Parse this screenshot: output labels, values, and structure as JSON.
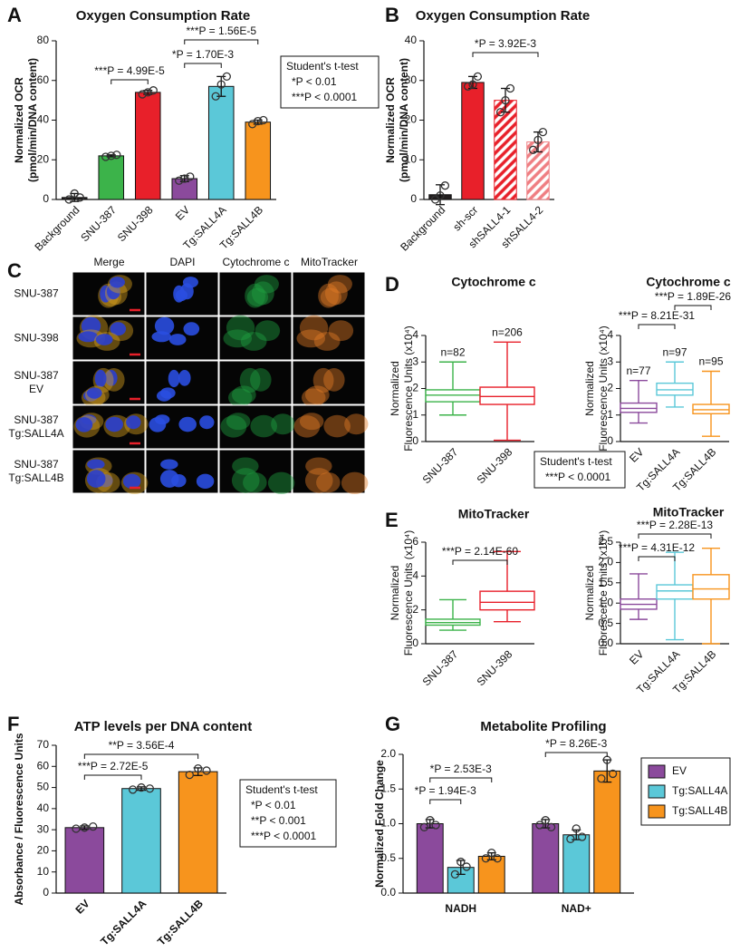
{
  "panel_labels": [
    "A",
    "B",
    "C",
    "D",
    "E",
    "F",
    "G"
  ],
  "image_panel": {
    "columns": [
      "Merge",
      "DAPI",
      "Cytochrome c",
      "MitoTracker"
    ],
    "column_colors": [
      "#222222",
      "#1f6fd1",
      "#22a04a",
      "#e0322a"
    ],
    "rows": [
      [
        "SNU-387"
      ],
      [
        "SNU-398"
      ],
      [
        "SNU-387",
        "EV"
      ],
      [
        "SNU-387",
        "Tg:SALL4A"
      ],
      [
        "SNU-387",
        "Tg:SALL4B"
      ]
    ]
  },
  "chart_data": [
    {
      "type": "bar",
      "title": "Oxygen Consumption Rate",
      "y_label": [
        "Normalized OCR",
        "(pmol/min/DNA content)"
      ],
      "categories": [
        "Background",
        "SNU-387",
        "SNU-398",
        "EV",
        "Tg:SALL4A",
        "Tg:SALL4B"
      ],
      "values": [
        1,
        22,
        54,
        10.5,
        57,
        39
      ],
      "errors": [
        2,
        0.5,
        1,
        1.5,
        5,
        1
      ],
      "points": [
        [
          0,
          3,
          1
        ],
        [
          21.5,
          22,
          22.5
        ],
        [
          53,
          54,
          55
        ],
        [
          9.5,
          10.5,
          11.5
        ],
        [
          52,
          58,
          62
        ],
        [
          38,
          39.5,
          40
        ]
      ],
      "colors": [
        "#231f20",
        "#3cb34a",
        "#e8202a",
        "#8b4a9c",
        "#5bc8d8",
        "#f7941d"
      ],
      "ylim": [
        0,
        80
      ],
      "yticks": [
        0,
        20,
        40,
        60,
        80
      ],
      "annotations": [
        "***P = 4.99E-5",
        "*P = 1.70E-3",
        "***P = 1.56E-5"
      ],
      "stats_box": [
        "Student's t-test",
        "*P < 0.01",
        "***P < 0.0001"
      ]
    },
    {
      "type": "bar",
      "title": "Oxygen Consumption Rate",
      "y_label": [
        "Normalized OCR",
        "(pmol/min/DNA content)"
      ],
      "categories": [
        "Background",
        "sh-scr",
        "shSALL4-1",
        "shSALL4-2"
      ],
      "values": [
        1.2,
        29.5,
        25,
        14.5
      ],
      "errors": [
        2.5,
        1.5,
        3,
        2.5
      ],
      "points": [
        [
          0,
          1,
          3.5
        ],
        [
          28.5,
          29,
          31
        ],
        [
          22,
          25,
          28
        ],
        [
          12.5,
          15,
          17
        ]
      ],
      "colors": [
        "#231f20",
        "#e8202a",
        "#e8202a",
        "#ef7e82"
      ],
      "hatch": [
        false,
        false,
        true,
        true
      ],
      "ylim": [
        0,
        40
      ],
      "yticks": [
        0,
        10,
        20,
        30,
        40
      ],
      "annotations": [
        "*P = 3.92E-3"
      ]
    },
    {
      "type": "box",
      "title": "Cytochrome c",
      "y_label": [
        "Normalized",
        "Fluorescence Units (x10⁴)"
      ],
      "categories": [
        "SNU-387",
        "SNU-398"
      ],
      "colors": [
        "#3cb34a",
        "#e8202a"
      ],
      "boxes": [
        {
          "min": 1.0,
          "q1": 1.5,
          "median": 1.75,
          "q3": 1.95,
          "max": 3.0
        },
        {
          "min": 0.05,
          "q1": 1.4,
          "median": 1.7,
          "q3": 2.05,
          "max": 3.75
        }
      ],
      "n_labels": [
        "n=82",
        "n=206"
      ],
      "ylim": [
        0,
        4
      ],
      "yticks": [
        0,
        1,
        2,
        3,
        4
      ]
    },
    {
      "type": "box",
      "title": "Cytochrome c",
      "y_label": [
        "Normalized",
        "Fluorescence Units (x10⁴)"
      ],
      "categories": [
        "EV",
        "Tg:SALL4A",
        "Tg:SALL4B"
      ],
      "colors": [
        "#8b4a9c",
        "#5bc8d8",
        "#f7941d"
      ],
      "boxes": [
        {
          "min": 0.7,
          "q1": 1.1,
          "median": 1.25,
          "q3": 1.45,
          "max": 2.3
        },
        {
          "min": 1.3,
          "q1": 1.75,
          "median": 1.95,
          "q3": 2.2,
          "max": 3.0
        },
        {
          "min": 0.2,
          "q1": 1.05,
          "median": 1.2,
          "q3": 1.4,
          "max": 2.65
        }
      ],
      "n_labels": [
        "n=77",
        "n=97",
        "n=95"
      ],
      "ylim": [
        0,
        4
      ],
      "yticks": [
        0,
        1,
        2,
        3,
        4
      ],
      "annotations": [
        "***P = 8.21E-31",
        "***P = 1.89E-26"
      ],
      "stats_box": [
        "Student's t-test",
        "***P < 0.0001"
      ]
    },
    {
      "type": "box",
      "title": "MitoTracker",
      "y_label": [
        "Normalized",
        "Fluorescence Units (x10⁴)"
      ],
      "categories": [
        "SNU-387",
        "SNU-398"
      ],
      "colors": [
        "#3cb34a",
        "#e8202a"
      ],
      "boxes": [
        {
          "min": 0.8,
          "q1": 1.1,
          "median": 1.25,
          "q3": 1.45,
          "max": 2.6
        },
        {
          "min": 1.3,
          "q1": 2.0,
          "median": 2.45,
          "q3": 3.1,
          "max": 5.45
        }
      ],
      "ylim": [
        0,
        6
      ],
      "yticks": [
        0,
        2,
        4,
        6
      ],
      "annotations": [
        "***P = 2.14E-60"
      ]
    },
    {
      "type": "box",
      "title": "MitoTracker",
      "y_label": [
        "Normalized",
        "Fluorescence Units (x10⁴)"
      ],
      "categories": [
        "EV",
        "Tg:SALL4A",
        "Tg:SALL4B"
      ],
      "colors": [
        "#8b4a9c",
        "#5bc8d8",
        "#f7941d"
      ],
      "boxes": [
        {
          "min": 0.6,
          "q1": 0.85,
          "median": 0.97,
          "q3": 1.1,
          "max": 1.72
        },
        {
          "min": 0.1,
          "q1": 1.1,
          "median": 1.3,
          "q3": 1.45,
          "max": 2.25
        },
        {
          "min": 0.0,
          "q1": 1.1,
          "median": 1.35,
          "q3": 1.7,
          "max": 2.35
        }
      ],
      "ylim": [
        0,
        2.5
      ],
      "yticks": [
        {
          "value": 0,
          "label": "0.0"
        },
        0.5,
        {
          "value": 1,
          "label": "1.0"
        },
        1.5,
        {
          "value": 2,
          "label": "2.0"
        },
        2.5
      ],
      "annotations": [
        "***P = 4.31E-12",
        "***P = 2.28E-13"
      ]
    },
    {
      "type": "bar",
      "title": "ATP levels per DNA content",
      "y_label": [
        "Absorbance / Fluorescence Units"
      ],
      "categories": [
        "EV",
        "Tg:SALL4A",
        "Tg:SALL4B"
      ],
      "values": [
        31,
        49.5,
        57.5
      ],
      "errors": [
        0.8,
        0.8,
        1.8
      ],
      "points": [
        [
          30.5,
          31,
          31.5
        ],
        [
          49,
          50,
          49.5
        ],
        [
          56,
          59,
          58
        ]
      ],
      "colors": [
        "#8b4a9c",
        "#5bc8d8",
        "#f7941d"
      ],
      "ylim": [
        0,
        70
      ],
      "yticks": [
        0,
        10,
        20,
        30,
        40,
        50,
        60,
        70
      ],
      "annotations": [
        "***P = 2.72E-5",
        "**P = 3.56E-4"
      ],
      "stats_box": [
        "Student's t-test",
        "*P < 0.01",
        "**P < 0.001",
        "***P < 0.0001"
      ]
    },
    {
      "type": "bar",
      "title": "Metabolite Profiling",
      "y_label": [
        "Normalized Fold Change"
      ],
      "categories": [
        "NADH",
        "NAD+"
      ],
      "series": [
        {
          "name": "EV",
          "color": "#8b4a9c",
          "values": [
            1.0,
            1.0
          ],
          "errors": [
            0.06,
            0.06
          ],
          "points": [
            [
              0.95,
              1.05,
              0.98
            ],
            [
              0.98,
              1.05,
              0.95
            ]
          ]
        },
        {
          "name": "Tg:SALL4A",
          "color": "#5bc8d8",
          "values": [
            0.37,
            0.84
          ],
          "errors": [
            0.1,
            0.07
          ],
          "points": [
            [
              0.27,
              0.45,
              0.38
            ],
            [
              0.78,
              0.93,
              0.81
            ]
          ]
        },
        {
          "name": "Tg:SALL4B",
          "color": "#f7941d",
          "values": [
            0.53,
            1.76
          ],
          "errors": [
            0.05,
            0.16
          ],
          "points": [
            [
              0.5,
              0.58,
              0.5
            ],
            [
              1.65,
              1.92,
              1.72
            ]
          ]
        }
      ],
      "ylim": [
        0,
        2
      ],
      "yticks": [
        {
          "value": 0,
          "label": "0.0"
        },
        0.5,
        {
          "value": 1,
          "label": "1.0"
        },
        1.5,
        {
          "value": 2,
          "label": "2.0"
        }
      ],
      "annotations": [
        "*P = 1.94E-3",
        "*P = 2.53E-3",
        "*P = 8.26E-3"
      ]
    }
  ]
}
